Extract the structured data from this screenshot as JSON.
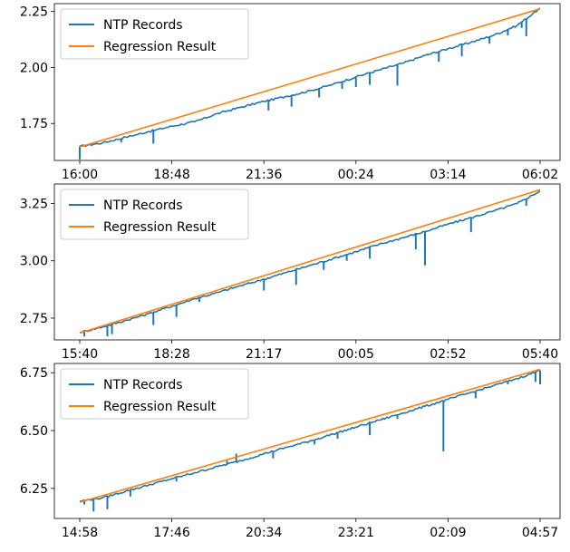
{
  "colors": {
    "ntp": "#1f77b4",
    "regression": "#ff7f0e",
    "axis": "#000000",
    "legend_border": "#cccccc"
  },
  "chart_data": [
    {
      "type": "line",
      "title": "",
      "xlabel": "",
      "ylabel": "",
      "x_tick_labels": [
        "16:00",
        "18:48",
        "21:36",
        "00:24",
        "03:14",
        "06:02"
      ],
      "ylim": [
        1.585,
        2.285
      ],
      "y_ticks": [
        1.75,
        2.0,
        2.25
      ],
      "y_tick_labels": [
        "1.75",
        "2.00",
        "2.25"
      ],
      "grid": false,
      "legend": {
        "position": "top-left",
        "entries": [
          "NTP Records",
          "Regression Result"
        ]
      },
      "series": [
        {
          "name": "NTP Records",
          "points": [
            [
              0,
              1.648
            ],
            [
              0.05,
              1.664
            ],
            [
              0.1,
              1.689
            ],
            [
              0.15,
              1.714
            ],
            [
              0.2,
              1.738
            ],
            [
              0.25,
              1.758
            ],
            [
              0.3,
              1.795
            ],
            [
              0.35,
              1.823
            ],
            [
              0.4,
              1.849
            ],
            [
              0.45,
              1.872
            ],
            [
              0.5,
              1.896
            ],
            [
              0.55,
              1.925
            ],
            [
              0.6,
              1.958
            ],
            [
              0.65,
              1.989
            ],
            [
              0.7,
              2.018
            ],
            [
              0.75,
              2.054
            ],
            [
              0.8,
              2.084
            ],
            [
              0.85,
              2.113
            ],
            [
              0.9,
              2.145
            ],
            [
              0.95,
              2.188
            ],
            [
              1.0,
              2.265
            ]
          ],
          "dips": [
            [
              0,
              1.59
            ],
            [
              0.09,
              1.665
            ],
            [
              0.16,
              1.66
            ],
            [
              0.41,
              1.808
            ],
            [
              0.46,
              1.825
            ],
            [
              0.52,
              1.866
            ],
            [
              0.57,
              1.905
            ],
            [
              0.6,
              1.913
            ],
            [
              0.63,
              1.922
            ],
            [
              0.69,
              1.919
            ],
            [
              0.78,
              2.025
            ],
            [
              0.83,
              2.05
            ],
            [
              0.89,
              2.106
            ],
            [
              0.93,
              2.143
            ],
            [
              0.96,
              2.177
            ],
            [
              0.97,
              2.139
            ]
          ]
        },
        {
          "name": "Regression Result",
          "points": [
            [
              0,
              1.645
            ],
            [
              1,
              2.262
            ]
          ]
        }
      ]
    },
    {
      "type": "line",
      "title": "",
      "xlabel": "",
      "ylabel": "",
      "x_tick_labels": [
        "15:40",
        "18:28",
        "21:17",
        "00:05",
        "02:52",
        "05:40"
      ],
      "ylim": [
        2.655,
        3.335
      ],
      "y_ticks": [
        2.75,
        3.0,
        3.25
      ],
      "y_tick_labels": [
        "2.75",
        "3.00",
        "3.25"
      ],
      "grid": false,
      "legend": {
        "position": "top-left",
        "entries": [
          "NTP Records",
          "Regression Result"
        ]
      },
      "series": [
        {
          "name": "NTP Records",
          "points": [
            [
              0,
              2.688
            ],
            [
              0.05,
              2.712
            ],
            [
              0.1,
              2.74
            ],
            [
              0.15,
              2.77
            ],
            [
              0.2,
              2.802
            ],
            [
              0.25,
              2.835
            ],
            [
              0.3,
              2.862
            ],
            [
              0.35,
              2.892
            ],
            [
              0.4,
              2.92
            ],
            [
              0.45,
              2.95
            ],
            [
              0.5,
              2.98
            ],
            [
              0.55,
              3.01
            ],
            [
              0.6,
              3.04
            ],
            [
              0.65,
              3.072
            ],
            [
              0.7,
              3.1
            ],
            [
              0.75,
              3.128
            ],
            [
              0.8,
              3.16
            ],
            [
              0.85,
              3.188
            ],
            [
              0.9,
              3.218
            ],
            [
              0.95,
              3.25
            ],
            [
              1.0,
              3.305
            ]
          ],
          "dips": [
            [
              0.01,
              2.67
            ],
            [
              0.06,
              2.67
            ],
            [
              0.07,
              2.68
            ],
            [
              0.16,
              2.72
            ],
            [
              0.21,
              2.755
            ],
            [
              0.26,
              2.82
            ],
            [
              0.34,
              2.888
            ],
            [
              0.4,
              2.87
            ],
            [
              0.47,
              2.895
            ],
            [
              0.53,
              2.96
            ],
            [
              0.58,
              3.0
            ],
            [
              0.63,
              3.01
            ],
            [
              0.73,
              3.05
            ],
            [
              0.75,
              2.98
            ],
            [
              0.85,
              3.125
            ],
            [
              0.97,
              3.24
            ]
          ]
        },
        {
          "name": "Regression Result",
          "points": [
            [
              0,
              2.685
            ],
            [
              1,
              3.31
            ]
          ]
        }
      ]
    },
    {
      "type": "line",
      "title": "",
      "xlabel": "",
      "ylabel": "",
      "x_tick_labels": [
        "14:58",
        "17:46",
        "20:34",
        "23:21",
        "02:09",
        "04:57"
      ],
      "ylim": [
        6.12,
        6.79
      ],
      "y_ticks": [
        6.25,
        6.5,
        6.75
      ],
      "y_tick_labels": [
        "6.25",
        "6.50",
        "6.75"
      ],
      "grid": false,
      "legend": {
        "position": "top-left",
        "entries": [
          "NTP Records",
          "Regression Result"
        ]
      },
      "series": [
        {
          "name": "NTP Records",
          "points": [
            [
              0,
              6.195
            ],
            [
              0.05,
              6.21
            ],
            [
              0.1,
              6.238
            ],
            [
              0.15,
              6.265
            ],
            [
              0.2,
              6.292
            ],
            [
              0.25,
              6.318
            ],
            [
              0.3,
              6.345
            ],
            [
              0.35,
              6.37
            ],
            [
              0.4,
              6.4
            ],
            [
              0.45,
              6.428
            ],
            [
              0.5,
              6.455
            ],
            [
              0.55,
              6.485
            ],
            [
              0.6,
              6.515
            ],
            [
              0.65,
              6.545
            ],
            [
              0.7,
              6.575
            ],
            [
              0.75,
              6.605
            ],
            [
              0.8,
              6.635
            ],
            [
              0.85,
              6.665
            ],
            [
              0.9,
              6.695
            ],
            [
              0.95,
              6.725
            ],
            [
              1.0,
              6.76
            ]
          ],
          "dips": [
            [
              0.01,
              6.18
            ],
            [
              0.03,
              6.15
            ],
            [
              0.06,
              6.16
            ],
            [
              0.08,
              6.23
            ],
            [
              0.11,
              6.215
            ],
            [
              0.21,
              6.28
            ],
            [
              0.27,
              6.33
            ],
            [
              0.34,
              6.4
            ],
            [
              0.32,
              6.37
            ],
            [
              0.42,
              6.38
            ],
            [
              0.51,
              6.44
            ],
            [
              0.56,
              6.465
            ],
            [
              0.63,
              6.48
            ],
            [
              0.69,
              6.55
            ],
            [
              0.79,
              6.41
            ],
            [
              0.86,
              6.64
            ],
            [
              0.93,
              6.7
            ],
            [
              0.99,
              6.71
            ],
            [
              1.0,
              6.7
            ]
          ]
        },
        {
          "name": "Regression Result",
          "points": [
            [
              0,
              6.19
            ],
            [
              1,
              6.765
            ]
          ]
        }
      ]
    }
  ]
}
